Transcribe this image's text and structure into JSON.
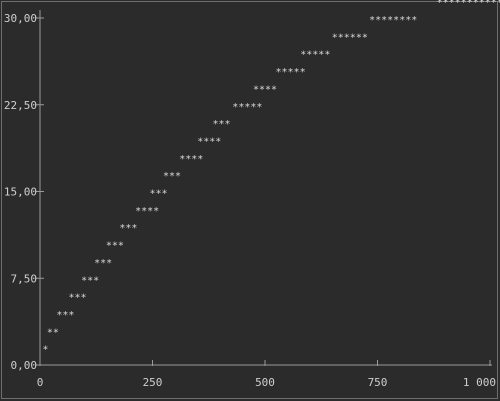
{
  "chart_data": {
    "type": "scatter",
    "title": "",
    "xlabel": "",
    "ylabel": "",
    "xlim": [
      0,
      1000
    ],
    "ylim": [
      0,
      30
    ],
    "grid": false,
    "marker": "*",
    "x_ticks": [
      {
        "value": 0,
        "label": "0"
      },
      {
        "value": 250,
        "label": "250"
      },
      {
        "value": 500,
        "label": "500"
      },
      {
        "value": 750,
        "label": "750"
      },
      {
        "value": 1000,
        "label": "1 000"
      }
    ],
    "y_ticks": [
      {
        "value": 0,
        "label": "0,00"
      },
      {
        "value": 7.5,
        "label": "7,50"
      },
      {
        "value": 15,
        "label": "15,00"
      },
      {
        "value": 22.5,
        "label": "22,50"
      },
      {
        "value": 30,
        "label": "30,00"
      }
    ],
    "series": [
      {
        "points": [
          {
            "x": 12,
            "y": 1.5,
            "label": "*"
          },
          {
            "x": 22,
            "y": 3.0,
            "label": "**"
          },
          {
            "x": 43,
            "y": 4.5,
            "label": "***"
          },
          {
            "x": 70,
            "y": 6.0,
            "label": "***"
          },
          {
            "x": 98,
            "y": 7.5,
            "label": "***"
          },
          {
            "x": 127,
            "y": 9.0,
            "label": "***"
          },
          {
            "x": 153,
            "y": 10.5,
            "label": "***"
          },
          {
            "x": 183,
            "y": 12.0,
            "label": "***"
          },
          {
            "x": 218,
            "y": 13.5,
            "label": "****"
          },
          {
            "x": 250,
            "y": 15.0,
            "label": "***"
          },
          {
            "x": 280,
            "y": 16.5,
            "label": "***"
          },
          {
            "x": 316,
            "y": 18.0,
            "label": "****"
          },
          {
            "x": 356,
            "y": 19.5,
            "label": "****"
          },
          {
            "x": 390,
            "y": 21.0,
            "label": "***"
          },
          {
            "x": 434,
            "y": 22.5,
            "label": "*****"
          },
          {
            "x": 480,
            "y": 24.0,
            "label": "****"
          },
          {
            "x": 530,
            "y": 25.5,
            "label": "*****"
          },
          {
            "x": 585,
            "y": 27.0,
            "label": "*****"
          },
          {
            "x": 655,
            "y": 28.5,
            "label": "******"
          },
          {
            "x": 738,
            "y": 30.0,
            "label": "********"
          },
          {
            "x": 888,
            "y": 31.5,
            "label": "*****************"
          }
        ]
      }
    ]
  }
}
